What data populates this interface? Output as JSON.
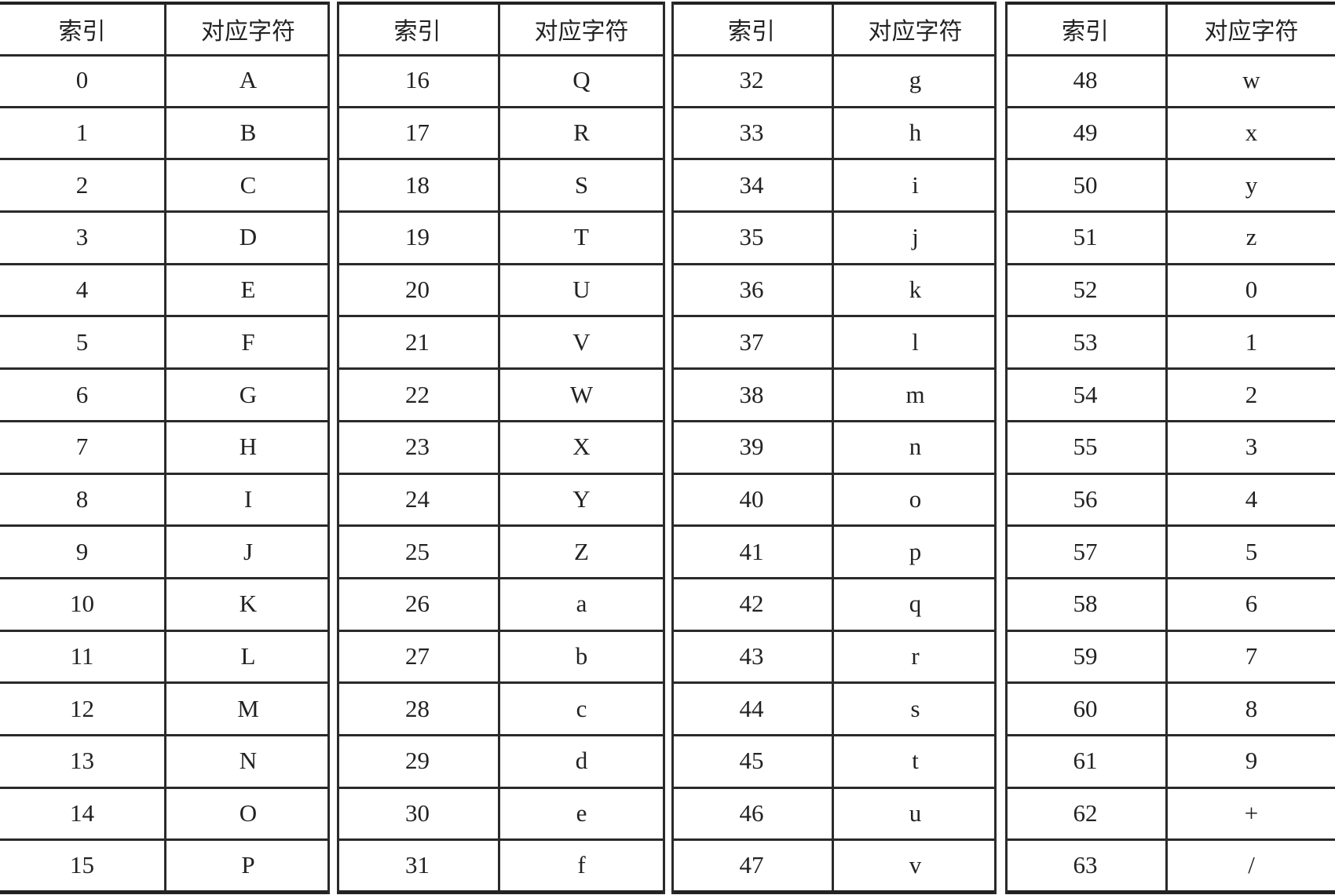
{
  "headers": {
    "index": "索引",
    "char": "对应字符"
  },
  "groups": [
    {
      "rows": [
        [
          "0",
          "A"
        ],
        [
          "1",
          "B"
        ],
        [
          "2",
          "C"
        ],
        [
          "3",
          "D"
        ],
        [
          "4",
          "E"
        ],
        [
          "5",
          "F"
        ],
        [
          "6",
          "G"
        ],
        [
          "7",
          "H"
        ],
        [
          "8",
          "I"
        ],
        [
          "9",
          "J"
        ],
        [
          "10",
          "K"
        ],
        [
          "11",
          "L"
        ],
        [
          "12",
          "M"
        ],
        [
          "13",
          "N"
        ],
        [
          "14",
          "O"
        ],
        [
          "15",
          "P"
        ]
      ]
    },
    {
      "rows": [
        [
          "16",
          "Q"
        ],
        [
          "17",
          "R"
        ],
        [
          "18",
          "S"
        ],
        [
          "19",
          "T"
        ],
        [
          "20",
          "U"
        ],
        [
          "21",
          "V"
        ],
        [
          "22",
          "W"
        ],
        [
          "23",
          "X"
        ],
        [
          "24",
          "Y"
        ],
        [
          "25",
          "Z"
        ],
        [
          "26",
          "a"
        ],
        [
          "27",
          "b"
        ],
        [
          "28",
          "c"
        ],
        [
          "29",
          "d"
        ],
        [
          "30",
          "e"
        ],
        [
          "31",
          "f"
        ]
      ]
    },
    {
      "rows": [
        [
          "32",
          "g"
        ],
        [
          "33",
          "h"
        ],
        [
          "34",
          "i"
        ],
        [
          "35",
          "j"
        ],
        [
          "36",
          "k"
        ],
        [
          "37",
          "l"
        ],
        [
          "38",
          "m"
        ],
        [
          "39",
          "n"
        ],
        [
          "40",
          "o"
        ],
        [
          "41",
          "p"
        ],
        [
          "42",
          "q"
        ],
        [
          "43",
          "r"
        ],
        [
          "44",
          "s"
        ],
        [
          "45",
          "t"
        ],
        [
          "46",
          "u"
        ],
        [
          "47",
          "v"
        ]
      ]
    },
    {
      "rows": [
        [
          "48",
          "w"
        ],
        [
          "49",
          "x"
        ],
        [
          "50",
          "y"
        ],
        [
          "51",
          "z"
        ],
        [
          "52",
          "0"
        ],
        [
          "53",
          "1"
        ],
        [
          "54",
          "2"
        ],
        [
          "55",
          "3"
        ],
        [
          "56",
          "4"
        ],
        [
          "57",
          "5"
        ],
        [
          "58",
          "6"
        ],
        [
          "59",
          "7"
        ],
        [
          "60",
          "8"
        ],
        [
          "61",
          "9"
        ],
        [
          "62",
          "+"
        ],
        [
          "63",
          "/"
        ]
      ]
    }
  ]
}
